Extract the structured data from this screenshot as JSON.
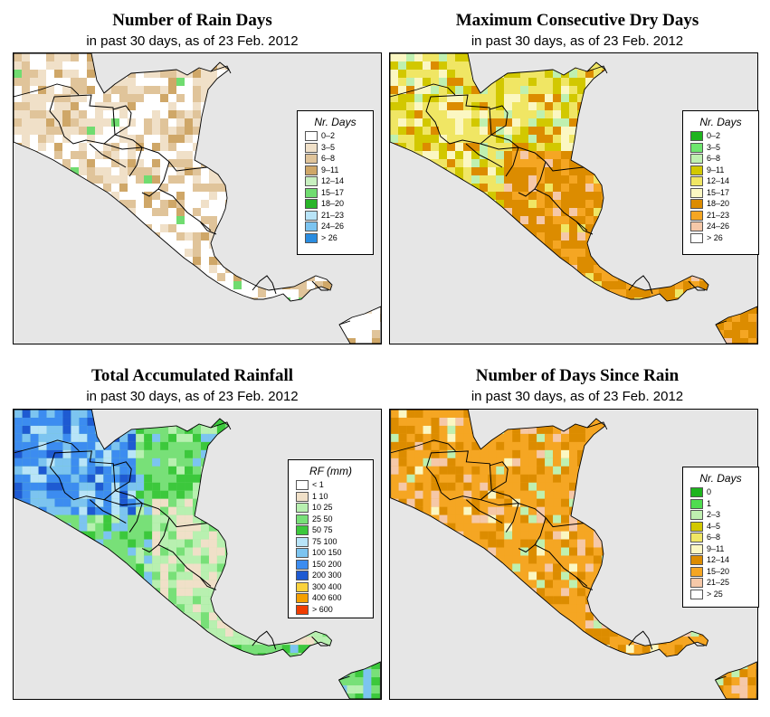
{
  "panels": [
    {
      "title": "Number of Rain Days",
      "subtitle": "in past 30 days, as of  23 Feb. 2012",
      "legend_title": "Nr. Days",
      "land_base": "#e8d2b0",
      "legend": [
        {
          "label": "0–2",
          "color": "#ffffff"
        },
        {
          "label": "3–5",
          "color": "#f0e0c8"
        },
        {
          "label": "6–8",
          "color": "#e0c49a"
        },
        {
          "label": "9–11",
          "color": "#cfa768"
        },
        {
          "label": "12–14",
          "color": "#c8f0c0"
        },
        {
          "label": "15–17",
          "color": "#70dc70"
        },
        {
          "label": "18–20",
          "color": "#28b428"
        },
        {
          "label": "21–23",
          "color": "#b8e4f8"
        },
        {
          "label": "24–26",
          "color": "#7cc4f0"
        },
        {
          "label": "> 26",
          "color": "#2a8ce0"
        }
      ]
    },
    {
      "title": "Maximum Consecutive Dry Days",
      "subtitle": "in past 30 days, as of  23 Feb. 2012",
      "legend_title": "Nr. Days",
      "land_base": "#e9e27a",
      "legend": [
        {
          "label": "0–2",
          "color": "#1eb41e"
        },
        {
          "label": "3–5",
          "color": "#6ee66e"
        },
        {
          "label": "6–8",
          "color": "#bff0b0"
        },
        {
          "label": "9–11",
          "color": "#d2c800"
        },
        {
          "label": "12–14",
          "color": "#f0e664"
        },
        {
          "label": "15–17",
          "color": "#fbf7c2"
        },
        {
          "label": "18–20",
          "color": "#dc8c00"
        },
        {
          "label": "21–23",
          "color": "#f5a623"
        },
        {
          "label": "24–26",
          "color": "#f5c8a8"
        },
        {
          "label": "> 26",
          "color": "#ffffff"
        }
      ]
    },
    {
      "title": "Total Accumulated Rainfall",
      "subtitle": "in past 30 days, as of  23 Feb. 2012",
      "legend_title": "RF (mm)",
      "land_base": "#80dc80",
      "legend": [
        {
          "label": "< 1",
          "color": "#ffffff"
        },
        {
          "label": "1  10",
          "color": "#f0e0c8"
        },
        {
          "label": "10  25",
          "color": "#b8f0b0"
        },
        {
          "label": "25  50",
          "color": "#78e078"
        },
        {
          "label": "50  75",
          "color": "#3cc83c"
        },
        {
          "label": "75  100",
          "color": "#b8e4f8"
        },
        {
          "label": "100  150",
          "color": "#7cc4f0"
        },
        {
          "label": "150  200",
          "color": "#3c8cf0"
        },
        {
          "label": "200  300",
          "color": "#1e5ad2"
        },
        {
          "label": "300  400",
          "color": "#fad23c"
        },
        {
          "label": "400  600",
          "color": "#f5a000"
        },
        {
          "label": "> 600",
          "color": "#f03c00"
        }
      ]
    },
    {
      "title": "Number of Days Since Rain",
      "subtitle": "in past 30 days, as of  23 Feb. 2012",
      "legend_title": "Nr. Days",
      "land_base": "#f5a623",
      "legend": [
        {
          "label": "0",
          "color": "#1eb41e"
        },
        {
          "label": "1",
          "color": "#50dc50"
        },
        {
          "label": "2–3",
          "color": "#bff0b0"
        },
        {
          "label": "4–5",
          "color": "#d2c800"
        },
        {
          "label": "6–8",
          "color": "#f0e664"
        },
        {
          "label": "9–11",
          "color": "#fbf7c2"
        },
        {
          "label": "12–14",
          "color": "#dc8c00"
        },
        {
          "label": "15–20",
          "color": "#f5a623"
        },
        {
          "label": "21–25",
          "color": "#f5c8a8"
        },
        {
          "label": "> 25",
          "color": "#ffffff"
        }
      ]
    }
  ],
  "colors": {
    "ocean": "#e6e6e6",
    "border": "#000000"
  }
}
